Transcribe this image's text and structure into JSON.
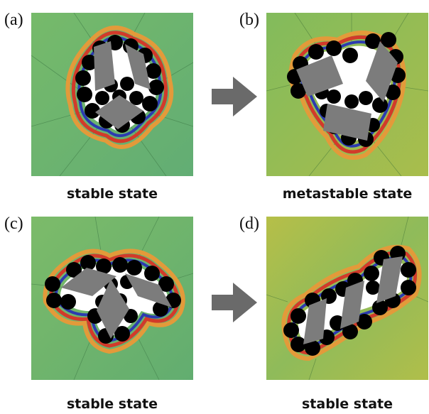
{
  "panels": [
    {
      "letter": "(a)",
      "caption": "stable state"
    },
    {
      "letter": "(b)",
      "caption": "metastable state"
    },
    {
      "letter": "(c)",
      "caption": "stable state"
    },
    {
      "letter": "(d)",
      "caption": "stable state"
    }
  ],
  "colors": {
    "field_green": "#6db56e",
    "field_yellow": "#b7c04a",
    "rhombus": "#7c7c7c",
    "disk": "#000000",
    "arrow": "#6a6a6a",
    "contour_red": "#d23a2a",
    "contour_blue": "#2c3bb0"
  }
}
